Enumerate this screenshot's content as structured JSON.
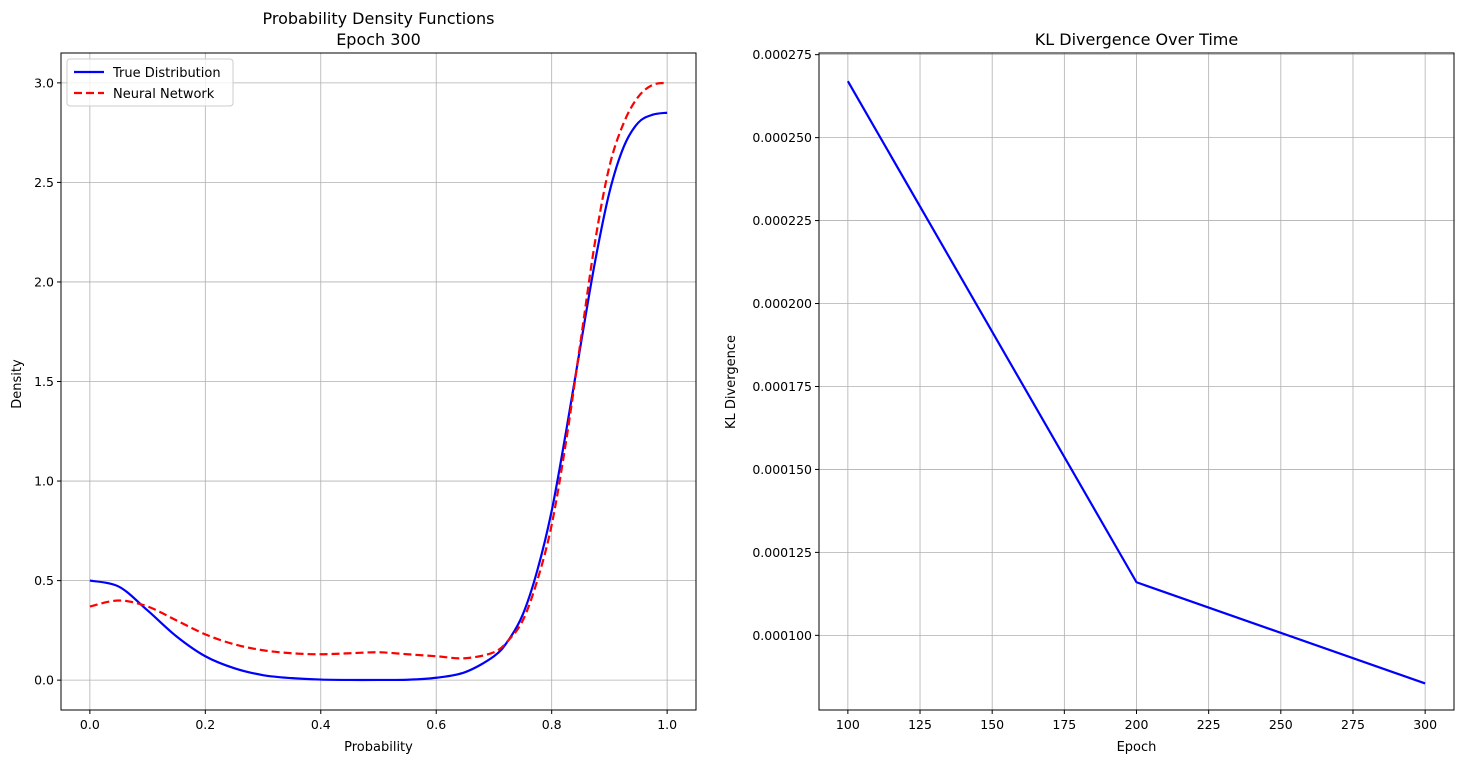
{
  "chart_data": [
    {
      "type": "line",
      "title": "Probability Density Functions",
      "subtitle": "Epoch 300",
      "xlabel": "Probability",
      "ylabel": "Density",
      "xlim": [
        -0.05,
        1.05
      ],
      "ylim": [
        -0.15,
        3.15
      ],
      "xticks": [
        0.0,
        0.2,
        0.4,
        0.6,
        0.8,
        1.0
      ],
      "xtick_labels": [
        "0.0",
        "0.2",
        "0.4",
        "0.6",
        "0.8",
        "1.0"
      ],
      "yticks": [
        0.0,
        0.5,
        1.0,
        1.5,
        2.0,
        2.5,
        3.0
      ],
      "ytick_labels": [
        "0.0",
        "0.5",
        "1.0",
        "1.5",
        "2.0",
        "2.5",
        "3.0"
      ],
      "grid": true,
      "legend": "top-left",
      "x": [
        0.0,
        0.05,
        0.1,
        0.15,
        0.2,
        0.25,
        0.3,
        0.35,
        0.4,
        0.45,
        0.5,
        0.55,
        0.6,
        0.65,
        0.7,
        0.725,
        0.75,
        0.775,
        0.8,
        0.825,
        0.85,
        0.875,
        0.9,
        0.925,
        0.95,
        0.975,
        1.0
      ],
      "series": [
        {
          "name": "True Distribution",
          "color": "#0000ff",
          "style": "solid",
          "values": [
            0.5,
            0.47,
            0.35,
            0.22,
            0.12,
            0.06,
            0.025,
            0.01,
            0.003,
            0.001,
            0.001,
            0.002,
            0.012,
            0.04,
            0.12,
            0.2,
            0.33,
            0.55,
            0.85,
            1.25,
            1.68,
            2.1,
            2.45,
            2.68,
            2.8,
            2.84,
            2.85
          ]
        },
        {
          "name": "Neural Network",
          "color": "#ff0000",
          "style": "dashed",
          "values": [
            0.37,
            0.4,
            0.37,
            0.3,
            0.23,
            0.18,
            0.15,
            0.135,
            0.13,
            0.135,
            0.14,
            0.13,
            0.12,
            0.11,
            0.14,
            0.2,
            0.3,
            0.5,
            0.78,
            1.2,
            1.7,
            2.2,
            2.58,
            2.8,
            2.93,
            2.99,
            3.0
          ]
        }
      ]
    },
    {
      "type": "line",
      "title": "KL Divergence Over Time",
      "xlabel": "Epoch",
      "ylabel": "KL Divergence",
      "xlim": [
        90,
        310
      ],
      "ylim": [
        7.75e-05,
        0.0002755
      ],
      "xticks": [
        100,
        125,
        150,
        175,
        200,
        225,
        250,
        275,
        300
      ],
      "xtick_labels": [
        "100",
        "125",
        "150",
        "175",
        "200",
        "225",
        "250",
        "275",
        "300"
      ],
      "yticks": [
        0.0001,
        0.000125,
        0.00015,
        0.000175,
        0.0002,
        0.000225,
        0.00025,
        0.000275
      ],
      "ytick_labels": [
        "0.000100",
        "0.000125",
        "0.000150",
        "0.000175",
        "0.000200",
        "0.000225",
        "0.000250",
        "0.000275"
      ],
      "grid": true,
      "x": [
        100,
        200,
        300
      ],
      "series": [
        {
          "color": "#0000ff",
          "style": "solid",
          "values": [
            0.000267,
            0.000116,
            8.55e-05
          ]
        }
      ]
    }
  ]
}
